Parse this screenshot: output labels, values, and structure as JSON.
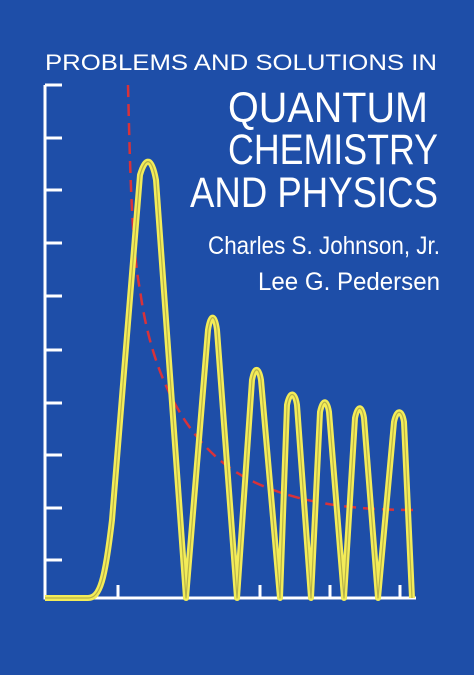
{
  "cover": {
    "title_top": "PROBLEMS AND SOLUTIONS IN",
    "title_main": [
      "QUANTUM",
      "CHEMISTRY",
      "AND PHYSICS"
    ],
    "authors": [
      "Charles S. Johnson, Jr.",
      "Lee G. Pedersen"
    ]
  }
}
